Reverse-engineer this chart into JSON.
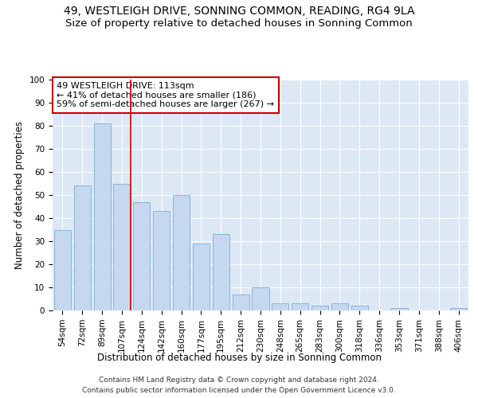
{
  "title": "49, WESTLEIGH DRIVE, SONNING COMMON, READING, RG4 9LA",
  "subtitle": "Size of property relative to detached houses in Sonning Common",
  "xlabel": "Distribution of detached houses by size in Sonning Common",
  "ylabel": "Number of detached properties",
  "categories": [
    "54sqm",
    "72sqm",
    "89sqm",
    "107sqm",
    "124sqm",
    "142sqm",
    "160sqm",
    "177sqm",
    "195sqm",
    "212sqm",
    "230sqm",
    "248sqm",
    "265sqm",
    "283sqm",
    "300sqm",
    "318sqm",
    "336sqm",
    "353sqm",
    "371sqm",
    "388sqm",
    "406sqm"
  ],
  "values": [
    35,
    54,
    81,
    55,
    47,
    43,
    50,
    29,
    33,
    7,
    10,
    3,
    3,
    2,
    3,
    2,
    0,
    1,
    0,
    0,
    1
  ],
  "bar_color": "#c5d8f0",
  "bar_edge_color": "#7aafd4",
  "background_color": "#dde8f5",
  "grid_color": "#ffffff",
  "annotation_box_text": "49 WESTLEIGH DRIVE: 113sqm\n← 41% of detached houses are smaller (186)\n59% of semi-detached houses are larger (267) →",
  "annotation_box_color": "#ffffff",
  "annotation_box_edge_color": "#cc0000",
  "property_line_color": "#cc0000",
  "ylim": [
    0,
    100
  ],
  "yticks": [
    0,
    10,
    20,
    30,
    40,
    50,
    60,
    70,
    80,
    90,
    100
  ],
  "footer_line1": "Contains HM Land Registry data © Crown copyright and database right 2024.",
  "footer_line2": "Contains public sector information licensed under the Open Government Licence v3.0.",
  "title_fontsize": 10,
  "subtitle_fontsize": 9.5,
  "axis_label_fontsize": 8.5,
  "tick_fontsize": 7.5,
  "annotation_fontsize": 8,
  "footer_fontsize": 6.5
}
